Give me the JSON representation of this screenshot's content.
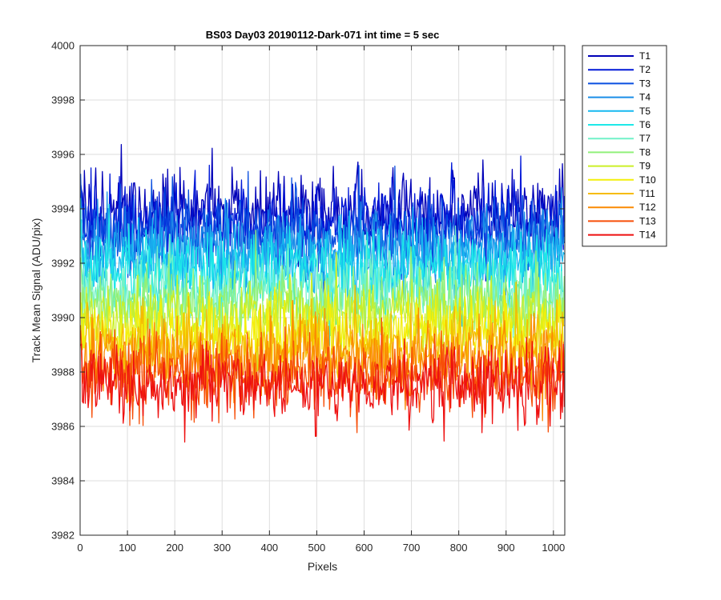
{
  "chart_data": {
    "type": "line",
    "title": "BS03 Day03 20190112-Dark-071 int time = 5 sec",
    "xlabel": "Pixels",
    "ylabel": "Track Mean Signal (ADU/pix)",
    "xlim": [
      0,
      1024
    ],
    "ylim": [
      3982,
      4000
    ],
    "xticks": [
      0,
      100,
      200,
      300,
      400,
      500,
      600,
      700,
      800,
      900,
      1000
    ],
    "yticks": [
      3982,
      3984,
      3986,
      3988,
      3990,
      3992,
      3994,
      3996,
      3998,
      4000
    ],
    "grid": true,
    "legend_location": "outside-right-top",
    "note": "Each series is dense noise around a mean level across pixels 1-1024; values listed are approximate mean and spread read from the plot.",
    "series": [
      {
        "name": "T1",
        "color": "#0000b8",
        "mean": 3993.9,
        "spread": 0.7
      },
      {
        "name": "T2",
        "color": "#0018d8",
        "mean": 3993.5,
        "spread": 0.7
      },
      {
        "name": "T3",
        "color": "#0a4fe0",
        "mean": 3993.1,
        "spread": 0.7
      },
      {
        "name": "T4",
        "color": "#1a8ee8",
        "mean": 3992.6,
        "spread": 0.7
      },
      {
        "name": "T5",
        "color": "#17b8f0",
        "mean": 3992.1,
        "spread": 0.7
      },
      {
        "name": "T6",
        "color": "#1ee8e8",
        "mean": 3991.6,
        "spread": 0.7
      },
      {
        "name": "T7",
        "color": "#72f2c8",
        "mean": 3991.0,
        "spread": 0.7
      },
      {
        "name": "T8",
        "color": "#90f07a",
        "mean": 3990.5,
        "spread": 0.7
      },
      {
        "name": "T9",
        "color": "#cbef27",
        "mean": 3990.0,
        "spread": 0.7
      },
      {
        "name": "T10",
        "color": "#f4ef0a",
        "mean": 3989.4,
        "spread": 0.7
      },
      {
        "name": "T11",
        "color": "#f6bb00",
        "mean": 3988.9,
        "spread": 0.7
      },
      {
        "name": "T12",
        "color": "#fb8a03",
        "mean": 3988.4,
        "spread": 0.7
      },
      {
        "name": "T13",
        "color": "#f74e08",
        "mean": 3987.9,
        "spread": 0.7
      },
      {
        "name": "T14",
        "color": "#ee1010",
        "mean": 3987.5,
        "spread": 0.7
      }
    ]
  }
}
